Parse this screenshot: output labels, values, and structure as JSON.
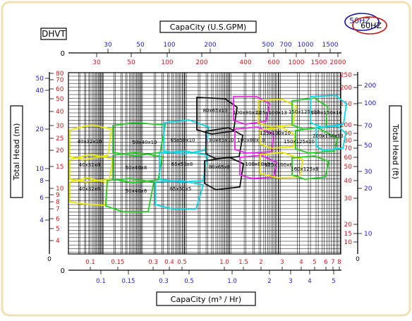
{
  "chart_data": {
    "type": "performance-range",
    "model_label": "DHVT",
    "badges": {
      "hz50": "50HZ",
      "hz60": "60HZ"
    },
    "top_axis": {
      "title": "CapaCity (U.S.GPM)",
      "blue_ticks": [
        "30",
        "50",
        "100",
        "200",
        "500",
        "700",
        "1000",
        "1500"
      ],
      "red_ticks": [
        "30",
        "50",
        "100",
        "200",
        "400",
        "600",
        "1000",
        "1500",
        "2000"
      ]
    },
    "bottom_axis": {
      "title": "CapaCity (m³ / Hr)",
      "red_ticks": [
        "0.1",
        "0.15",
        "0.3",
        "0.4",
        "0.5",
        "1.0",
        "1.5",
        "2",
        "3",
        "4",
        "5",
        "6",
        "7",
        "8"
      ],
      "blue_ticks": [
        "0.1",
        "0.15",
        "0.3",
        "0.5",
        "1.0",
        "2",
        "3",
        "4",
        "5"
      ]
    },
    "left_axis": {
      "title": "Total Head (m)",
      "red_ticks": [
        "80",
        "70",
        "60",
        "50",
        "40",
        "30",
        "25",
        "20",
        "15",
        "10",
        "9",
        "8",
        "7",
        "6",
        "5",
        "4"
      ],
      "blue_ticks": [
        "50",
        "40",
        "20",
        "10",
        "8",
        "6",
        "4"
      ],
      "zero": "0"
    },
    "right_axis": {
      "title": "Total Head (ft)",
      "red_ticks": [
        "250",
        "200",
        "150",
        "100",
        "90",
        "80",
        "70",
        "60",
        "50",
        "40",
        "30",
        "20",
        "15",
        "10"
      ],
      "blue_ticks": [
        "200",
        "100",
        "70",
        "50",
        "30",
        "20",
        "10"
      ],
      "zero": "0"
    },
    "pump_models": [
      {
        "label": "40x32x10",
        "color": "#e8e800"
      },
      {
        "label": "40x32x8",
        "color": "#e8e800"
      },
      {
        "label": "40x32x6",
        "color": "#e8e800"
      },
      {
        "label": "50x40x10",
        "color": "#22cc22"
      },
      {
        "label": "50x40x8",
        "color": "#22cc22"
      },
      {
        "label": "50x40x6",
        "color": "#22cc22"
      },
      {
        "label": "65x50x10",
        "color": "#00d8e8"
      },
      {
        "label": "65x50x8",
        "color": "#00d8e8"
      },
      {
        "label": "65x50x5",
        "color": "#00d8e8"
      },
      {
        "label": "80x65x13",
        "color": "#111111"
      },
      {
        "label": "80x65x10",
        "color": "#111111"
      },
      {
        "label": "80x65x8",
        "color": "#111111"
      },
      {
        "label": "100x80x13",
        "color": "#ee22ee"
      },
      {
        "label": "100x80x10",
        "color": "#ee22ee"
      },
      {
        "label": "100x80x8",
        "color": "#ee22ee"
      },
      {
        "label": "125x100x13",
        "color": "#e8e800"
      },
      {
        "label": "125x100x10",
        "color": "#e8e800"
      },
      {
        "label": "125x100x8",
        "color": "#e8e800"
      },
      {
        "label": "150x125x13",
        "color": "#22cc22"
      },
      {
        "label": "150x125x10",
        "color": "#22cc22"
      },
      {
        "label": "160x125x8",
        "color": "#22cc22"
      },
      {
        "label": "200x150x16",
        "color": "#00d8e8"
      },
      {
        "label": "200x150x13",
        "color": "#00d8e8"
      }
    ]
  }
}
